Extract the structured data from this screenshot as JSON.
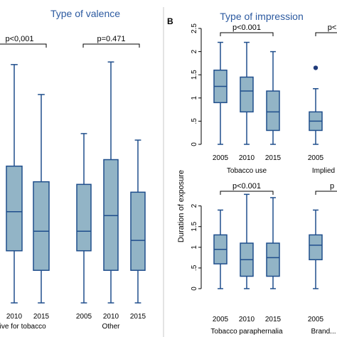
{
  "colors": {
    "box_fill": "#92b4c6",
    "box_stroke": "#1f4e8c",
    "title": "#2c5aa0",
    "bracket": "#000000",
    "outlier": "#1f3a7a",
    "divider": "#c8c8c8"
  },
  "left": {
    "title": "Type of valence",
    "groups": [
      {
        "label": "...ive for tobacco",
        "pvalue": "p<0,001"
      },
      {
        "label": "Other",
        "pvalue": "p=0.471"
      }
    ]
  },
  "right": {
    "panel_letter": "B",
    "title": "Type of impression",
    "ylabel": "Duration of exposure"
  },
  "chart_data": [
    {
      "type": "box",
      "title": "Type of valence",
      "groups": [
        {
          "label": "...ive for tobacco",
          "pvalue": "p<0,001",
          "categories": [
            "2010",
            "2015"
          ],
          "boxes": [
            {
              "min": 0.0,
              "q1": 0.4,
              "median": 0.7,
              "q3": 1.05,
              "max": 1.83
            },
            {
              "min": 0.0,
              "q1": 0.25,
              "median": 0.55,
              "q3": 0.93,
              "max": 1.6
            }
          ]
        },
        {
          "label": "Other",
          "pvalue": "p=0.471",
          "categories": [
            "2005",
            "2010",
            "2015"
          ],
          "boxes": [
            {
              "min": 0.0,
              "q1": 0.4,
              "median": 0.55,
              "q3": 0.91,
              "max": 1.3
            },
            {
              "min": 0.0,
              "q1": 0.25,
              "median": 0.67,
              "q3": 1.1,
              "max": 1.85
            },
            {
              "min": 0.0,
              "q1": 0.25,
              "median": 0.48,
              "q3": 0.85,
              "max": 1.25
            }
          ]
        }
      ]
    },
    {
      "type": "box",
      "title": "Type of impression",
      "ylabel": "Duration of exposure",
      "yticks": [
        "0",
        ".5",
        "1",
        "1.5",
        "2",
        "2.5"
      ],
      "ylim": [
        0,
        2.5
      ],
      "panels": [
        {
          "label": "Tobacco use",
          "pvalue": "p<0.001",
          "categories": [
            "2005",
            "2010",
            "2015"
          ],
          "boxes": [
            {
              "min": 0.0,
              "q1": 0.9,
              "median": 1.25,
              "q3": 1.6,
              "max": 2.2
            },
            {
              "min": 0.0,
              "q1": 0.7,
              "median": 1.15,
              "q3": 1.45,
              "max": 2.2
            },
            {
              "min": 0.0,
              "q1": 0.3,
              "median": 0.7,
              "q3": 1.15,
              "max": 2.0
            }
          ]
        },
        {
          "label": "Implied",
          "pvalue": "p<",
          "categories": [
            "2005"
          ],
          "boxes": [
            {
              "min": 0.0,
              "q1": 0.3,
              "median": 0.5,
              "q3": 0.7,
              "max": 1.2,
              "outliers": [
                1.65
              ]
            }
          ]
        },
        {
          "label": "Tobacco paraphernalia",
          "pvalue": "p<0.001",
          "categories": [
            "2005",
            "2010",
            "2015"
          ],
          "boxes": [
            {
              "min": 0.0,
              "q1": 0.6,
              "median": 0.95,
              "q3": 1.3,
              "max": 1.9
            },
            {
              "min": 0.0,
              "q1": 0.3,
              "median": 0.7,
              "q3": 1.1,
              "max": 2.28
            },
            {
              "min": 0.0,
              "q1": 0.3,
              "median": 0.75,
              "q3": 1.1,
              "max": 2.2
            }
          ]
        },
        {
          "label": "Brand...",
          "pvalue": "p",
          "categories": [
            "2005"
          ],
          "boxes": [
            {
              "min": 0.0,
              "q1": 0.7,
              "median": 1.05,
              "q3": 1.3,
              "max": 1.9
            }
          ]
        }
      ]
    }
  ]
}
